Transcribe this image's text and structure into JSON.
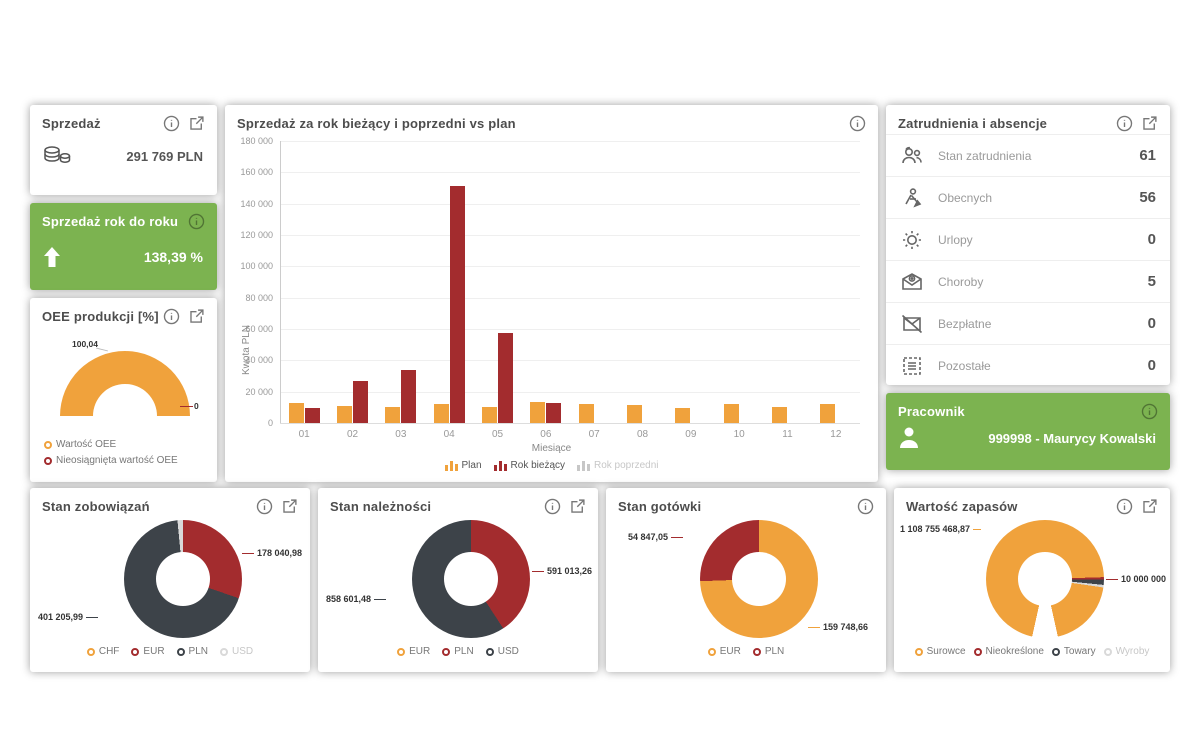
{
  "colors": {
    "orange": "#f0a23c",
    "red": "#a32c2e",
    "dark": "#3d4349",
    "light": "#d9d9d9",
    "white": "#ffffff",
    "green": "#7cb350",
    "gray_disabled": "#c7c7c7"
  },
  "widgets": {
    "sprzedaz": {
      "title": "Sprzedaż",
      "value": "291 769 PLN"
    },
    "sprzedaz_rok_do_roku": {
      "title": "Sprzedaż rok do roku",
      "value": "138,39 %"
    },
    "oee": {
      "title": "OEE produkcji [%]"
    },
    "zatrudnienia": {
      "title": "Zatrudnienia i absencje",
      "rows": [
        {
          "icon": "employees-icon",
          "label": "Stan zatrudnienia",
          "value": "61"
        },
        {
          "icon": "worker-icon",
          "label": "Obecnych",
          "value": "56"
        },
        {
          "icon": "sun-icon",
          "label": "Urlopy",
          "value": "0"
        },
        {
          "icon": "medical-envelope-icon",
          "label": "Choroby",
          "value": "5"
        },
        {
          "icon": "crossed-envelope-icon",
          "label": "Bezpłatne",
          "value": "0"
        },
        {
          "icon": "dashed-list-icon",
          "label": "Pozostałe",
          "value": "0"
        }
      ]
    },
    "pracownik": {
      "title": "Pracownik",
      "value": "999998 - Maurycy Kowalski"
    }
  },
  "chart_data": [
    {
      "id": "sales_vs_plan",
      "type": "bar",
      "title": "Sprzedaż za rok bieżący i poprzedni vs plan",
      "categories": [
        "01",
        "02",
        "03",
        "04",
        "05",
        "06",
        "07",
        "08",
        "09",
        "10",
        "11",
        "12"
      ],
      "series": [
        {
          "name": "Plan",
          "color_key": "orange",
          "values": [
            13000,
            11000,
            10000,
            12000,
            10500,
            13500,
            12000,
            11500,
            9500,
            12000,
            10500,
            12000
          ]
        },
        {
          "name": "Rok bieżący",
          "color_key": "red",
          "values": [
            9500,
            27000,
            34000,
            151000,
            57500,
            12500,
            0,
            0,
            0,
            0,
            0,
            0
          ]
        },
        {
          "name": "Rok poprzedni",
          "color_key": "gray_disabled",
          "disabled": true,
          "values": []
        }
      ],
      "xlabel": "Miesiące",
      "ylabel": "Kwota PLN",
      "ylim": [
        0,
        180000
      ],
      "ytick_step": 20000,
      "grid": true,
      "legend_position": "bottom"
    },
    {
      "id": "oee_gauge",
      "type": "gauge",
      "title": "OEE produkcji [%]",
      "value": 100.04,
      "value_label": "100,04",
      "min_label": "0",
      "legend": [
        {
          "label": "Wartość OEE",
          "color_key": "orange"
        },
        {
          "label": "Nieosiągnięta wartość OEE",
          "color_key": "red"
        }
      ]
    },
    {
      "id": "stan_zobowiazan",
      "type": "pie",
      "title": "Stan zobowiązań",
      "labels": [
        "CHF",
        "EUR",
        "PLN",
        "USD"
      ],
      "values": [
        0,
        178040.98,
        401205.99,
        8800
      ],
      "note": "USD value estimated from sliver; not labeled on chart",
      "callouts": [
        {
          "text": "178 040,98",
          "slice": "EUR"
        },
        {
          "text": "401 205,99",
          "slice": "PLN"
        }
      ],
      "display_segments": [
        {
          "slice": "EUR",
          "color_key": "red",
          "pct": 30.3
        },
        {
          "slice": "PLN",
          "color_key": "dark",
          "pct": 68.2
        },
        {
          "slice": "USD",
          "color_key": "light",
          "pct": 1.5
        }
      ],
      "legend": [
        {
          "label": "CHF",
          "color_key": "orange"
        },
        {
          "label": "EUR",
          "color_key": "red"
        },
        {
          "label": "PLN",
          "color_key": "dark"
        },
        {
          "label": "USD",
          "color_key": "light"
        }
      ]
    },
    {
      "id": "stan_naleznosci",
      "type": "pie",
      "title": "Stan należności",
      "labels": [
        "EUR",
        "PLN",
        "USD"
      ],
      "values": [
        0,
        591013.26,
        858601.48
      ],
      "callouts": [
        {
          "text": "591 013,26",
          "slice": "PLN"
        },
        {
          "text": "858 601,48",
          "slice": "USD"
        }
      ],
      "display_segments": [
        {
          "slice": "PLN",
          "color_key": "red",
          "pct": 40.8
        },
        {
          "slice": "USD",
          "color_key": "dark",
          "pct": 59.2
        }
      ],
      "legend": [
        {
          "label": "EUR",
          "color_key": "orange"
        },
        {
          "label": "PLN",
          "color_key": "red"
        },
        {
          "label": "USD",
          "color_key": "dark"
        }
      ]
    },
    {
      "id": "stan_gotowki",
      "type": "pie",
      "title": "Stan gotówki",
      "labels": [
        "EUR",
        "PLN"
      ],
      "values": [
        159748.66,
        54847.05
      ],
      "callouts": [
        {
          "text": "54 847,05",
          "slice": "PLN"
        },
        {
          "text": "159 748,66",
          "slice": "EUR"
        }
      ],
      "display_segments": [
        {
          "slice": "EUR",
          "color_key": "orange",
          "pct": 74.4
        },
        {
          "slice": "PLN",
          "color_key": "red",
          "pct": 25.6
        }
      ],
      "legend": [
        {
          "label": "EUR",
          "color_key": "orange"
        },
        {
          "label": "PLN",
          "color_key": "red"
        }
      ]
    },
    {
      "id": "wartosc_zapasow",
      "type": "pie",
      "title": "Wartość zapasów",
      "labels": [
        "Surowce",
        "Nieokreślone",
        "Towary",
        "Wyroby"
      ],
      "values": [
        1108755468.87,
        null,
        10000000,
        null
      ],
      "note": "Only Surowce and Towary values labeled on chart",
      "callouts": [
        {
          "text": "1 108 755 468,87",
          "slice": "Surowce"
        },
        {
          "text": "10 000 000",
          "slice": "Towary"
        }
      ],
      "display_segments": [
        {
          "slice": "Surowce",
          "color_key": "orange",
          "pct": 24.5
        },
        {
          "slice": "Nieokreślone",
          "color_key": "red",
          "pct": 0.7
        },
        {
          "slice": "Towary",
          "color_key": "dark",
          "pct": 1.4
        },
        {
          "slice": "Wyroby",
          "color_key": "light",
          "pct": 0.7
        },
        {
          "slice": "Surowce",
          "color_key": "orange",
          "pct": 19.2
        },
        {
          "slice": "Wyroby",
          "color_key": "white",
          "pct": 7.0
        },
        {
          "slice": "Surowce",
          "color_key": "orange",
          "pct": 46.5
        }
      ],
      "legend": [
        {
          "label": "Surowce",
          "color_key": "orange"
        },
        {
          "label": "Nieokreślone",
          "color_key": "red"
        },
        {
          "label": "Towary",
          "color_key": "dark"
        },
        {
          "label": "Wyroby",
          "color_key": "light"
        }
      ]
    }
  ]
}
